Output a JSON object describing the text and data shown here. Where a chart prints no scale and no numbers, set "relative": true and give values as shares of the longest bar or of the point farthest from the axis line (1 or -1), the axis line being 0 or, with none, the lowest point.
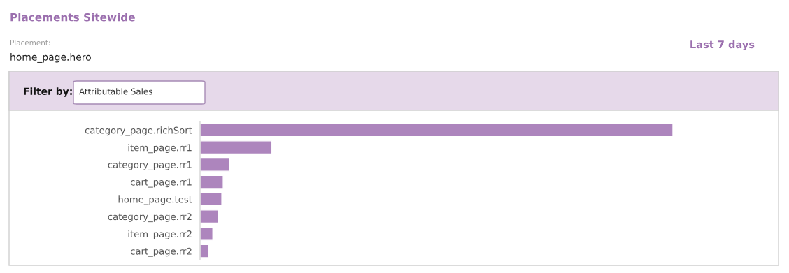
{
  "chart_data": {
    "type": "bar",
    "orientation": "horizontal",
    "relative": true,
    "title": "Placements Sitewide",
    "subtitle": "Last 7 days",
    "annotations": [
      "Placement:",
      "home_page.hero",
      "Filter by:",
      "Attributable Sales"
    ],
    "categories": [
      "category_page.richSort",
      "item_page.rr1",
      "category_page.rr1",
      "cart_page.rr1",
      "home_page.test",
      "category_page.rr2",
      "item_page.rr2",
      "cart_page.rr2"
    ],
    "values": [
      1,
      0.152,
      0.063,
      0.049,
      0.046,
      0.038,
      0.027,
      0.018
    ],
    "color": "#ad85bd"
  }
}
